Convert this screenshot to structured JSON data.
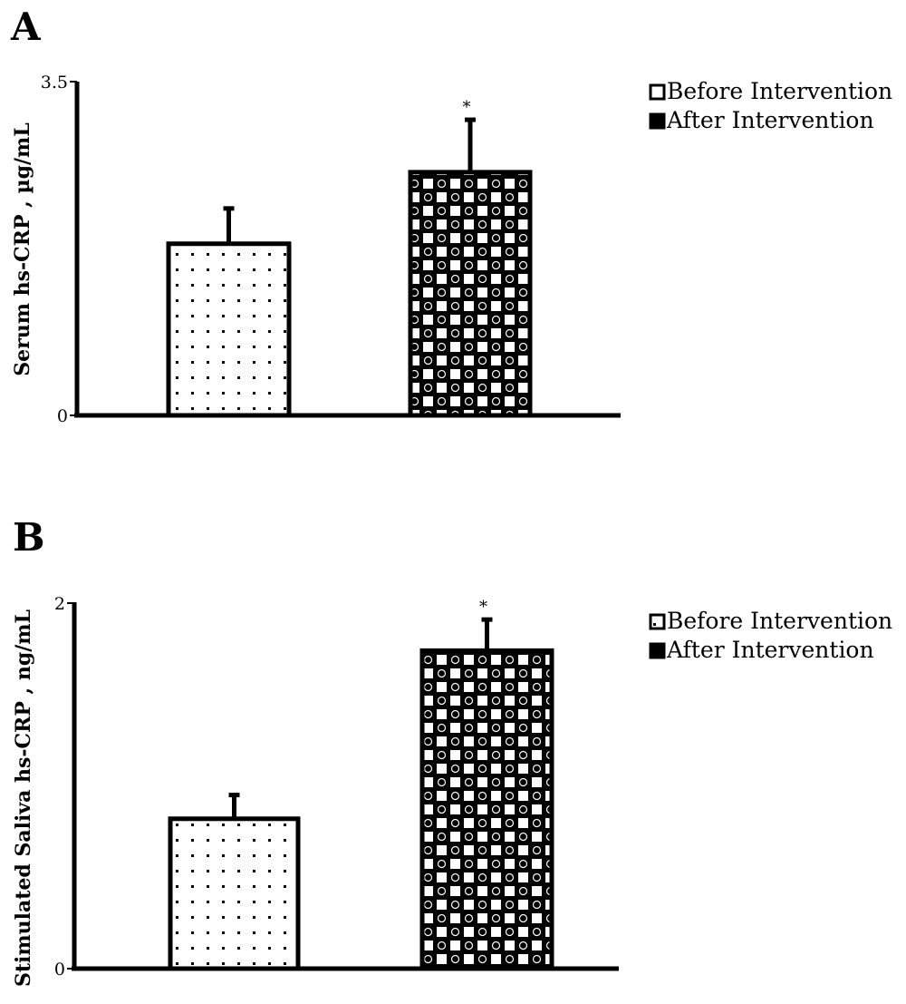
{
  "colors": {
    "ink": "#000000",
    "background": "#ffffff"
  },
  "chart_data": [
    {
      "type": "bar",
      "panel": "A",
      "categories": [
        "Before Intervention",
        "After Intervention"
      ],
      "series": [
        {
          "name": "Before Intervention",
          "value": 1.8,
          "error": 0.37,
          "pattern": "dots",
          "annotation": ""
        },
        {
          "name": "After Intervention",
          "value": 2.55,
          "error": 0.55,
          "pattern": "checker",
          "annotation": "*"
        }
      ],
      "ylabel": "Serum hs-CRP , µg/mL",
      "ylim": [
        0,
        3.5
      ],
      "ytick_labels": [
        "0",
        "3.5"
      ],
      "legend": {
        "placement": "top-right",
        "entries": [
          "Before Intervention",
          "After Intervention"
        ]
      },
      "grid": false
    },
    {
      "type": "bar",
      "panel": "B",
      "categories": [
        "Before Intervention",
        "After Intervention"
      ],
      "series": [
        {
          "name": "Before Intervention",
          "value": 0.82,
          "error": 0.13,
          "pattern": "dots",
          "annotation": ""
        },
        {
          "name": "After Intervention",
          "value": 1.74,
          "error": 0.17,
          "pattern": "checker",
          "annotation": "*"
        }
      ],
      "ylabel": "Stimulated Saliva hs-CRP , ng/mL",
      "ylim": [
        0,
        2
      ],
      "ytick_labels": [
        "0",
        "2"
      ],
      "legend": {
        "placement": "top-right",
        "entries": [
          "Before Intervention",
          "After Intervention"
        ]
      },
      "grid": false
    }
  ]
}
